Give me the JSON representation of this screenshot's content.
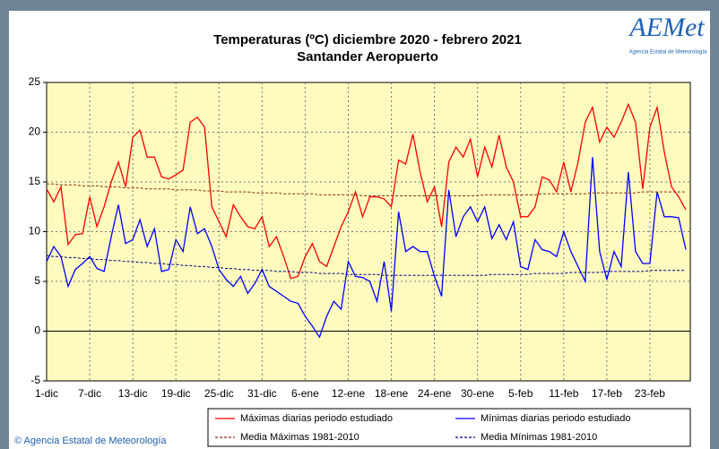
{
  "chart_data": {
    "type": "line",
    "title": "Temperaturas (ºC) diciembre 2020 - febrero 2021",
    "subtitle": "Santander Aeropuerto",
    "logo": "AEMet",
    "logo_caption": "Agencia Estatal de Meteorología",
    "credit": "© Agencia Estatal de Meteorología",
    "categories": [
      "1-dic",
      null,
      null,
      null,
      null,
      null,
      "7-dic",
      null,
      null,
      null,
      null,
      null,
      "13-dic",
      null,
      null,
      null,
      null,
      null,
      "19-dic",
      null,
      null,
      null,
      null,
      null,
      "25-dic",
      null,
      null,
      null,
      null,
      null,
      "31-dic",
      null,
      null,
      null,
      null,
      null,
      "6-ene",
      null,
      null,
      null,
      null,
      null,
      "12-ene",
      null,
      null,
      null,
      null,
      null,
      "18-ene",
      null,
      null,
      null,
      null,
      null,
      "24-ene",
      null,
      null,
      null,
      null,
      null,
      "30-ene",
      null,
      null,
      null,
      null,
      null,
      "5-feb",
      null,
      null,
      null,
      null,
      null,
      "11-feb",
      null,
      null,
      null,
      null,
      null,
      "17-feb",
      null,
      null,
      null,
      null,
      null,
      "23-feb",
      null,
      null,
      null,
      null,
      null
    ],
    "series": [
      {
        "name": "Máximas diarias periodo estudiado",
        "color": "#ff0000",
        "dashed": false,
        "values": [
          14.3,
          13,
          14.5,
          8.7,
          9.7,
          9.8,
          13.5,
          10.5,
          12.5,
          15,
          17,
          14.5,
          19.5,
          20.2,
          17.5,
          17.5,
          15.5,
          15.3,
          15.7,
          16.2,
          21,
          21.5,
          20.5,
          12.5,
          11,
          9.5,
          12.7,
          11.5,
          10.5,
          10.3,
          11.5,
          8.5,
          9.5,
          7.5,
          5.3,
          5.5,
          7.5,
          8.8,
          7,
          6.5,
          8.5,
          10.5,
          12,
          14,
          11.5,
          13.5,
          13.5,
          13.3,
          12.5,
          17.2,
          16.8,
          19.8,
          16,
          13,
          14.5,
          10.5,
          17,
          18.5,
          17.5,
          19.3,
          15.5,
          18.5,
          16.5,
          19.7,
          16.5,
          15,
          11.5,
          11.5,
          12.5,
          15.5,
          15.2,
          14,
          17,
          14,
          17,
          21,
          22.5,
          19,
          20.5,
          19.5,
          21,
          22.8,
          21,
          14.3,
          20.5,
          22.5,
          18,
          14.5,
          13.5,
          12.2
        ]
      },
      {
        "name": "Mínimas diarias periodo estudiado",
        "color": "#0000ff",
        "dashed": false,
        "values": [
          7,
          8.5,
          7.5,
          4.5,
          6.2,
          6.8,
          7.5,
          6.3,
          6,
          9.5,
          12.7,
          8.8,
          9.2,
          11.2,
          8.5,
          10.3,
          6,
          6.2,
          9.2,
          8,
          12.5,
          9.8,
          10.3,
          8.5,
          6.2,
          5.2,
          4.5,
          5.5,
          3.8,
          4.8,
          6.2,
          4.5,
          4,
          3.5,
          3,
          2.8,
          1.5,
          0.5,
          -0.6,
          1.5,
          3,
          2.2,
          7,
          5.5,
          5.4,
          5,
          3,
          7,
          2,
          12,
          8,
          8.5,
          8,
          8,
          5.5,
          3.5,
          14.2,
          9.5,
          11.5,
          12.5,
          11,
          12.5,
          9.3,
          10.7,
          9.2,
          11,
          6.5,
          6.2,
          9.2,
          8.2,
          8,
          7.5,
          10,
          8,
          6.5,
          5,
          17.5,
          8,
          5.2,
          8,
          6.5,
          16,
          8,
          6.8,
          6.8,
          14,
          11.5,
          11.5,
          11.4,
          8.2
        ]
      },
      {
        "name": "Media Máximas 1981-2010",
        "color": "#8b2a10",
        "dashed": true,
        "values": [
          14.8,
          14.8,
          14.7,
          14.7,
          14.7,
          14.6,
          14.6,
          14.6,
          14.5,
          14.5,
          14.5,
          14.4,
          14.4,
          14.4,
          14.3,
          14.3,
          14.3,
          14.3,
          14.2,
          14.2,
          14.2,
          14.2,
          14.1,
          14.1,
          14.1,
          14.0,
          14.0,
          14.0,
          14.0,
          13.9,
          13.9,
          13.9,
          13.9,
          13.8,
          13.8,
          13.8,
          13.8,
          13.8,
          13.7,
          13.7,
          13.7,
          13.7,
          13.7,
          13.7,
          13.6,
          13.6,
          13.6,
          13.6,
          13.6,
          13.6,
          13.6,
          13.6,
          13.6,
          13.6,
          13.6,
          13.6,
          13.6,
          13.6,
          13.6,
          13.6,
          13.6,
          13.7,
          13.7,
          13.7,
          13.7,
          13.7,
          13.7,
          13.7,
          13.7,
          13.8,
          13.8,
          13.8,
          13.8,
          13.8,
          13.8,
          13.8,
          13.9,
          13.9,
          13.9,
          13.9,
          13.9,
          13.9,
          13.9,
          14.0,
          14.0,
          14.0,
          14.0,
          14.0,
          14.0,
          14.0
        ]
      },
      {
        "name": "Media Mínimas 1981-2010",
        "color": "#000080",
        "dashed": true,
        "values": [
          7.6,
          7.5,
          7.5,
          7.4,
          7.4,
          7.3,
          7.3,
          7.2,
          7.2,
          7.1,
          7.1,
          7.0,
          7.0,
          6.9,
          6.9,
          6.8,
          6.8,
          6.7,
          6.7,
          6.6,
          6.6,
          6.5,
          6.5,
          6.4,
          6.4,
          6.3,
          6.3,
          6.2,
          6.2,
          6.1,
          6.1,
          6.1,
          6.0,
          6.0,
          6.0,
          5.9,
          5.9,
          5.9,
          5.8,
          5.8,
          5.8,
          5.8,
          5.7,
          5.7,
          5.7,
          5.7,
          5.7,
          5.6,
          5.6,
          5.6,
          5.6,
          5.6,
          5.6,
          5.6,
          5.6,
          5.6,
          5.6,
          5.6,
          5.6,
          5.6,
          5.6,
          5.6,
          5.7,
          5.7,
          5.7,
          5.7,
          5.7,
          5.7,
          5.8,
          5.8,
          5.8,
          5.8,
          5.8,
          5.9,
          5.9,
          5.9,
          5.9,
          5.9,
          6.0,
          6.0,
          6.0,
          6.0,
          6.0,
          6.0,
          6.1,
          6.1,
          6.1,
          6.1,
          6.1,
          6.1
        ]
      }
    ],
    "ylim": [
      -5,
      25
    ],
    "yticks": [
      -5,
      0,
      5,
      10,
      15,
      20,
      25
    ],
    "grid": true,
    "plot_background": "#fffbbf",
    "zero_line": true
  }
}
